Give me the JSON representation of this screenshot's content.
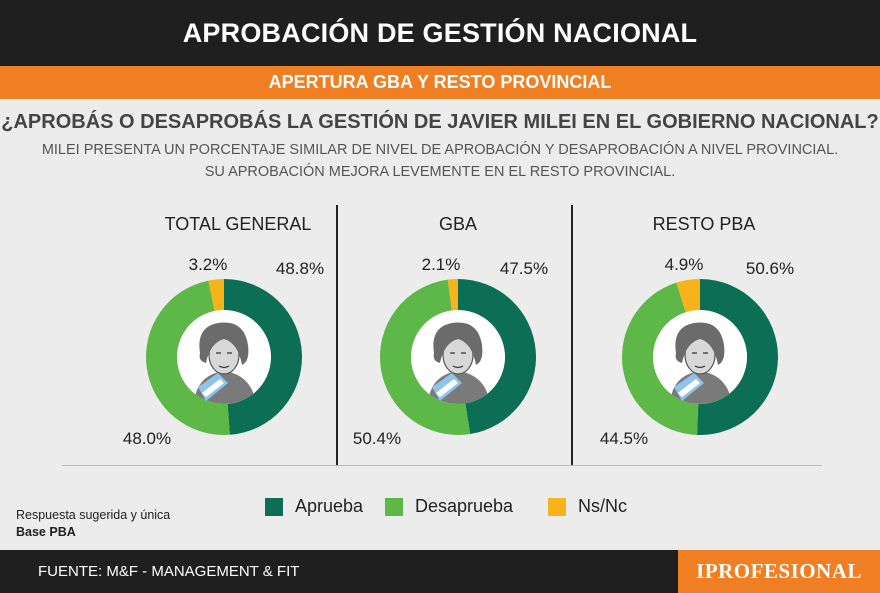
{
  "header": {
    "title": "APROBACIÓN DE GESTIÓN NACIONAL"
  },
  "subheader": {
    "title": "APERTURA GBA Y RESTO PROVINCIAL"
  },
  "question": "¿APROBÁS O DESAPROBÁS LA GESTIÓN DE JAVIER MILEI EN EL GOBIERNO NACIONAL?",
  "description": {
    "line1": "MILEI PRESENTA UN PORCENTAJE SIMILAR DE NIVEL DE APROBACIÓN Y DESAPROBACIÓN A NIVEL PROVINCIAL.",
    "line2": "SU APROBACIÓN MEJORA LEVEMENTE EN EL RESTO PROVINCIAL."
  },
  "colors": {
    "aprueba": "#0b6e55",
    "desaprueba": "#5db848",
    "nsnc": "#f6b41a",
    "accent": "#ef7f22",
    "dark": "#1f1f1f"
  },
  "chart_data": [
    {
      "type": "pie",
      "title": "TOTAL GENERAL",
      "labels": [
        "Aprueba",
        "Desaprueba",
        "Ns/Nc"
      ],
      "values": [
        48.8,
        48.0,
        3.2
      ],
      "value_labels": [
        "48.8%",
        "48.0%",
        "3.2%"
      ]
    },
    {
      "type": "pie",
      "title": "GBA",
      "labels": [
        "Aprueba",
        "Desaprueba",
        "Ns/Nc"
      ],
      "values": [
        47.5,
        50.4,
        2.1
      ],
      "value_labels": [
        "47.5%",
        "50.4%",
        "2.1%"
      ]
    },
    {
      "type": "pie",
      "title": "RESTO PBA",
      "labels": [
        "Aprueba",
        "Desaprueba",
        "Ns/Nc"
      ],
      "values": [
        50.6,
        44.5,
        4.9
      ],
      "value_labels": [
        "50.6%",
        "44.5%",
        "4.9%"
      ]
    }
  ],
  "legend": [
    {
      "label": "Aprueba",
      "color": "#0b6e55"
    },
    {
      "label": "Desaprueba",
      "color": "#5db848"
    },
    {
      "label": "Ns/Nc",
      "color": "#f6b41a"
    }
  ],
  "note": {
    "line1": "Respuesta sugerida y única",
    "line2": "Base PBA"
  },
  "footer": {
    "source": "FUENTE: M&F - MANAGEMENT & FIT",
    "brand": "IPROFESIONAL"
  }
}
